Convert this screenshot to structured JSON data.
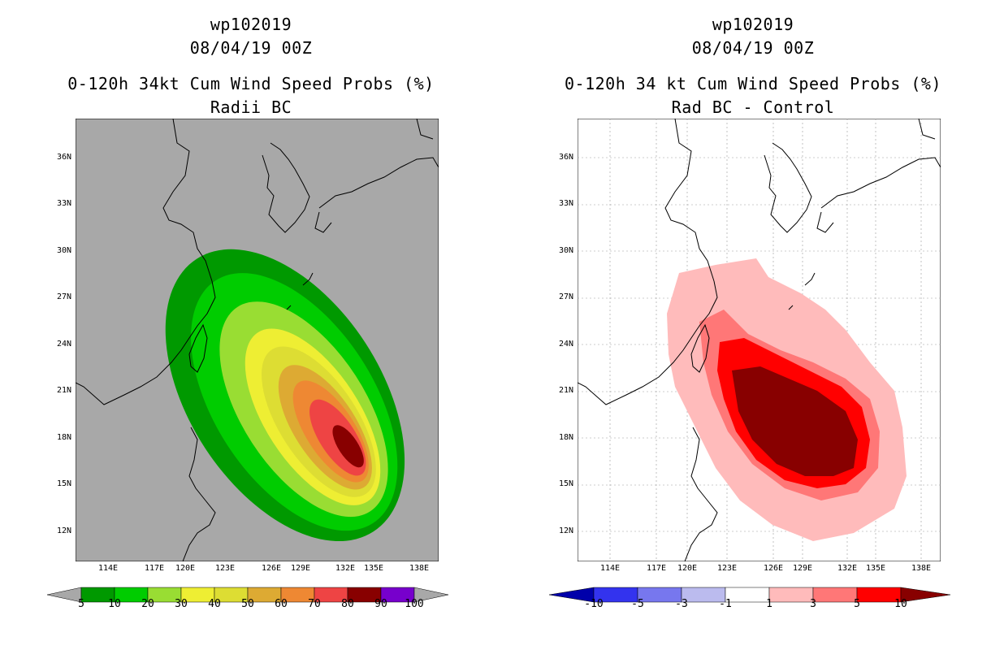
{
  "left_panel": {
    "title_line1": "wp102019",
    "title_line2": "08/04/19 00Z",
    "title_line3": "0-120h 34kt Cum Wind Speed Probs (%)",
    "title_line4": "Radii BC",
    "background_color": "#a8a8a8",
    "lat_labels": [
      "36N",
      "33N",
      "30N",
      "27N",
      "24N",
      "21N",
      "18N",
      "15N",
      "12N"
    ],
    "lon_labels": [
      "114E",
      "117E",
      "120E",
      "123E",
      "126E",
      "129E",
      "132E",
      "135E",
      "138E"
    ],
    "colorbar": {
      "labels": [
        "5",
        "10",
        "20",
        "30",
        "40",
        "50",
        "60",
        "70",
        "80",
        "90",
        "100"
      ],
      "colors": [
        "#009900",
        "#00cc00",
        "#99dd33",
        "#eeee33",
        "#dddd33",
        "#ddaa33",
        "#ee8833",
        "#ee4444",
        "#880000",
        "#7700cc"
      ]
    }
  },
  "right_panel": {
    "title_line1": "wp102019",
    "title_line2": "08/04/19 00Z",
    "title_line3": "0-120h 34 kt Cum Wind Speed Probs (%)",
    "title_line4": "Rad BC - Control",
    "background_color": "#ffffff",
    "lat_labels": [
      "36N",
      "33N",
      "30N",
      "27N",
      "24N",
      "21N",
      "18N",
      "15N",
      "12N"
    ],
    "lon_labels": [
      "114E",
      "117E",
      "120E",
      "123E",
      "126E",
      "129E",
      "132E",
      "135E",
      "138E"
    ],
    "colorbar": {
      "labels": [
        "-10",
        "-5",
        "-3",
        "-1",
        "1",
        "3",
        "5",
        "10"
      ],
      "colors": [
        "#0000aa",
        "#3333ee",
        "#7777ee",
        "#bbbbee",
        "#ffffff",
        "#ffbbbb",
        "#ff7777",
        "#ff0000",
        "#880000"
      ]
    }
  }
}
